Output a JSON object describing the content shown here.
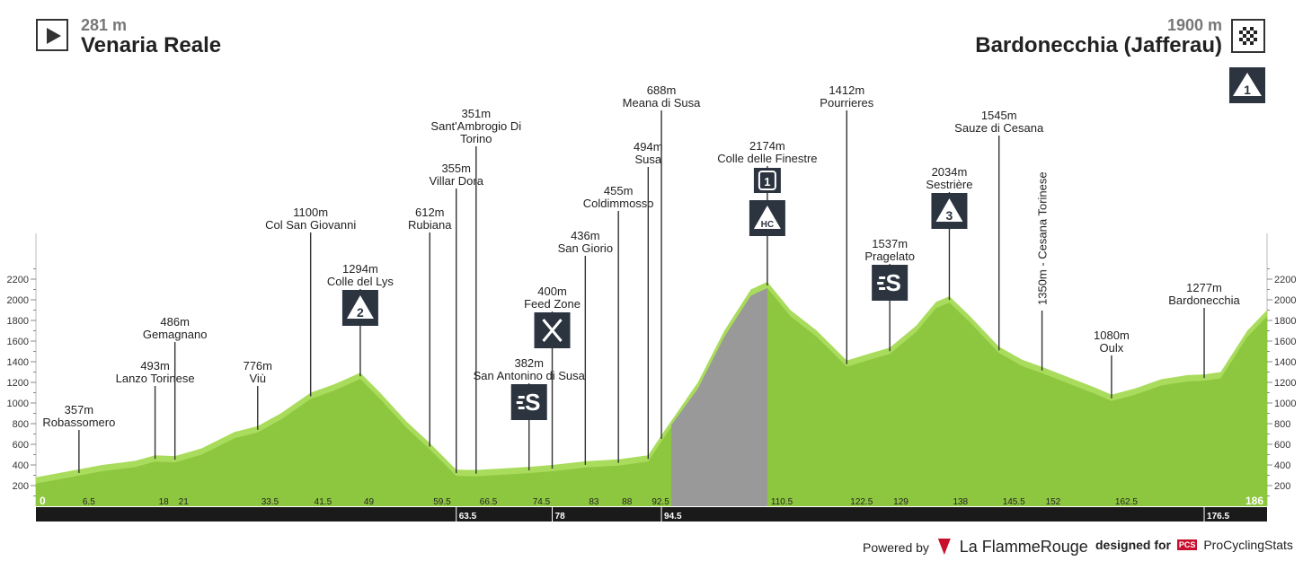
{
  "header": {
    "start": {
      "elevation": "281 m",
      "name": "Venaria Reale",
      "icon": "play-icon"
    },
    "finish": {
      "elevation": "1900 m",
      "name": "Bardonecchia (Jafferau)",
      "icon": "checkered-flag-icon",
      "category": "1"
    }
  },
  "footer": {
    "powered_by": "Powered by",
    "brand": "La FlammeRouge",
    "designed_for": "designed for",
    "pcs_logo": "PCS",
    "pcs_name": "ProCyclingStats"
  },
  "colors": {
    "profile_fill": "#8dc63f",
    "profile_highlight": "#a9dc5c",
    "descent_fill": "#999999",
    "bar": "#1a1a1a",
    "badge": "#2c3440"
  },
  "chart_data": {
    "type": "area",
    "xlim": [
      0,
      186
    ],
    "ylim": [
      0,
      2400
    ],
    "yticks": [
      200,
      400,
      600,
      800,
      1000,
      1200,
      1400,
      1600,
      1800,
      2000,
      2200
    ],
    "profile": [
      [
        0,
        281
      ],
      [
        6.5,
        357
      ],
      [
        10,
        400
      ],
      [
        15,
        440
      ],
      [
        18,
        493
      ],
      [
        21,
        486
      ],
      [
        25,
        560
      ],
      [
        30,
        720
      ],
      [
        33.5,
        776
      ],
      [
        37,
        900
      ],
      [
        41.5,
        1100
      ],
      [
        45,
        1180
      ],
      [
        49,
        1294
      ],
      [
        52,
        1100
      ],
      [
        56,
        820
      ],
      [
        59.5,
        612
      ],
      [
        63.5,
        355
      ],
      [
        66.5,
        351
      ],
      [
        74.5,
        382
      ],
      [
        78,
        400
      ],
      [
        83,
        436
      ],
      [
        88,
        455
      ],
      [
        92.5,
        494
      ],
      [
        94.5,
        688
      ],
      [
        100,
        1200
      ],
      [
        104,
        1700
      ],
      [
        108,
        2100
      ],
      [
        110.5,
        2174
      ],
      [
        114,
        1900
      ],
      [
        118,
        1700
      ],
      [
        122.5,
        1412
      ],
      [
        126,
        1480
      ],
      [
        129,
        1537
      ],
      [
        133,
        1750
      ],
      [
        136,
        1980
      ],
      [
        138,
        2034
      ],
      [
        141,
        1850
      ],
      [
        145.5,
        1545
      ],
      [
        149,
        1420
      ],
      [
        152,
        1350
      ],
      [
        156,
        1250
      ],
      [
        160,
        1150
      ],
      [
        162.5,
        1080
      ],
      [
        166,
        1140
      ],
      [
        170,
        1230
      ],
      [
        174,
        1270
      ],
      [
        176.5,
        1277
      ],
      [
        179,
        1300
      ],
      [
        183,
        1700
      ],
      [
        186,
        1900
      ]
    ],
    "grey_section": [
      96,
      110.5
    ],
    "km_labels_top": [
      "0",
      "6.5",
      "18",
      "21",
      "33.5",
      "41.5",
      "49",
      "59.5",
      "66.5",
      "74.5",
      "83",
      "88",
      "92.5",
      "110.5",
      "122.5",
      "129",
      "138",
      "145.5",
      "152",
      "162.5",
      "186"
    ],
    "km_labels_bottom": [
      "63.5",
      "78",
      "94.5",
      "176.5"
    ],
    "waypoints": [
      {
        "km": 6.5,
        "elev": "357m",
        "name": "Robassomero",
        "label_y": 456
      },
      {
        "km": 18,
        "elev": "493m",
        "name": "Lanzo Torinese",
        "label_y": 407
      },
      {
        "km": 21,
        "elev": "486m",
        "name": "Gemagnano",
        "label_y": 358
      },
      {
        "km": 33.5,
        "elev": "776m",
        "name": "Viù",
        "label_y": 407
      },
      {
        "km": 41.5,
        "elev": "1100m",
        "name": "Col San Giovanni",
        "label_y": 236
      },
      {
        "km": 49,
        "elev": "1294m",
        "name": "Colle del Lys",
        "label_y": 299,
        "badge": "2"
      },
      {
        "km": 59.5,
        "elev": "612m",
        "name": "Rubiana",
        "label_y": 236
      },
      {
        "km": 63.5,
        "elev": "355m",
        "name": "Villar Dora",
        "label_y": 187
      },
      {
        "km": 66.5,
        "elev": "351m",
        "name": "Sant'Ambrogio Di",
        "name2": "Torino",
        "label_y": 126
      },
      {
        "km": 74.5,
        "elev": "382m",
        "name": "San Antonino di Susa",
        "label_y": 404,
        "badge": "sprint"
      },
      {
        "km": 78,
        "elev": "400m",
        "name": "Feed Zone",
        "label_y": 324,
        "badge": "feed"
      },
      {
        "km": 83,
        "elev": "436m",
        "name": "San Giorio",
        "label_y": 262
      },
      {
        "km": 88,
        "elev": "455m",
        "name": "Coldimmosso",
        "label_y": 212
      },
      {
        "km": 92.5,
        "elev": "494m",
        "name": "Susa",
        "label_y": 163
      },
      {
        "km": 94.5,
        "elev": "688m",
        "name": "Meana di Susa",
        "label_y": 100
      },
      {
        "km": 110.5,
        "elev": "2174m",
        "name": "Colle delle Finestre",
        "label_y": 162,
        "badge": "HC",
        "badge2": "1"
      },
      {
        "km": 122.5,
        "elev": "1412m",
        "name": "Pourrieres",
        "label_y": 100
      },
      {
        "km": 129,
        "elev": "1537m",
        "name": "Pragelato",
        "label_y": 271,
        "badge": "sprint"
      },
      {
        "km": 138,
        "elev": "2034m",
        "name": "Sestrière",
        "label_y": 191,
        "badge": "3"
      },
      {
        "km": 145.5,
        "elev": "1545m",
        "name": "Sauze di Cesana",
        "label_y": 128
      },
      {
        "km": 152,
        "vertical": "1350m - Cesana Torinese"
      },
      {
        "km": 162.5,
        "elev": "1080m",
        "name": "Oulx",
        "label_y": 373
      },
      {
        "km": 176.5,
        "elev": "1277m",
        "name": "Bardonecchia",
        "label_y": 320
      }
    ]
  }
}
